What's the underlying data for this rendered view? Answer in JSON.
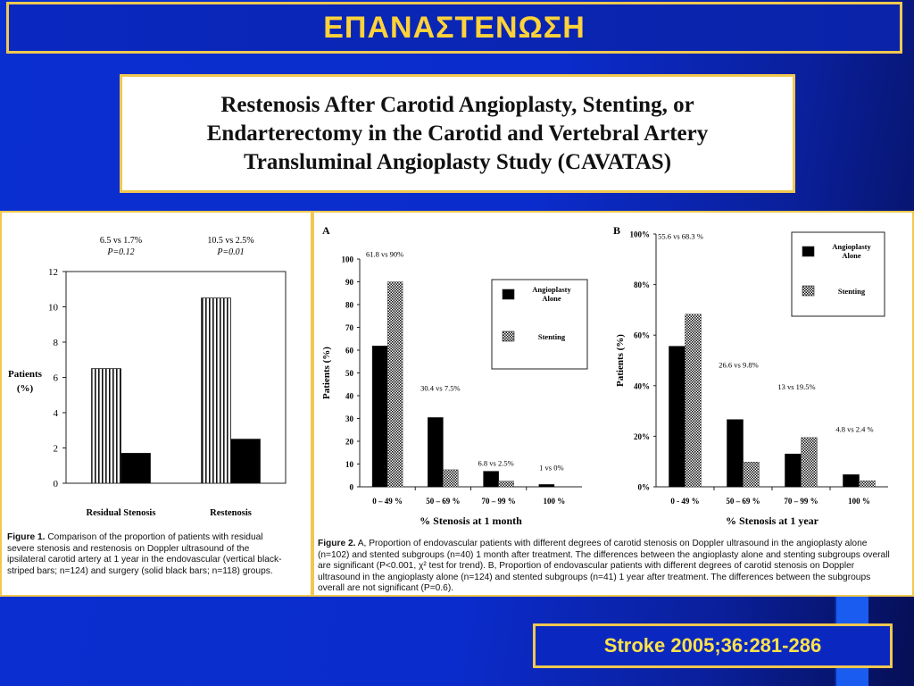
{
  "slide": {
    "title": "ΕΠΑΝΑΣΤΕΝΩΣΗ",
    "paper_title": [
      "Restenosis After Carotid Angioplasty, Stenting, or",
      "Endarterectomy in the Carotid and Vertebral Artery",
      "Transluminal Angioplasty Study (CAVATAS)"
    ],
    "citation": "Stroke 2005;36:281-286",
    "colors": {
      "background": "#0b2ccc",
      "border": "#f0c850",
      "title_text": "#ffd23a",
      "citation_text": "#ffe24a"
    }
  },
  "fig1_caption": {
    "label": "Figure 1.",
    "text": "Comparison of the proportion of patients with residual severe stenosis and restenosis on Doppler ultrasound of the ipsilateral carotid artery at 1 year in the endovascular (vertical black-striped bars; n=124) and surgery (solid black bars; n=118) groups."
  },
  "fig2_caption": {
    "label": "Figure 2.",
    "text": "A, Proportion of endovascular patients with different degrees of carotid stenosis on Doppler ultrasound in the angioplasty alone (n=102) and stented subgroups (n=40) 1 month after treatment. The differences between the angioplasty alone and stenting subgroups overall are significant (P<0.001, χ² test for trend). B, Proportion of endovascular patients with different degrees of carotid stenosis on Doppler ultrasound in the angioplasty alone (n=124) and stented subgroups (n=41) 1 year after treatment. The differences between the subgroups overall are not significant (P=0.6)."
  },
  "chart_data": [
    {
      "type": "bar",
      "title": "",
      "ylabel": "Patients (%)",
      "xlabel": "",
      "categories": [
        "Residual Stenosis",
        "Restenosis"
      ],
      "ylim": [
        0,
        12
      ],
      "yticks": [
        "0",
        "2",
        "4",
        "6",
        "8",
        "10",
        "12"
      ],
      "series": [
        {
          "name": "",
          "pattern": "vertical-stripes",
          "values": [
            6.5,
            10.5
          ]
        },
        {
          "name": "",
          "pattern": "solid-black",
          "values": [
            1.7,
            2.5
          ]
        }
      ],
      "annotations": [
        {
          "line1": "6.5 vs 1.7%",
          "line2": "P=0.12"
        },
        {
          "line1": "10.5 vs 2.5%",
          "line2": "P=0.01"
        }
      ],
      "grid": false
    },
    {
      "type": "bar",
      "panel_label": "A",
      "ylabel": "Patients (%)",
      "xlabel": "% Stenosis at 1 month",
      "categories": [
        "0 – 49 %",
        "50 – 69 %",
        "70 – 99 %",
        "100 %"
      ],
      "ylim": [
        0,
        100
      ],
      "yticks": [
        "0",
        "10",
        "20",
        "30",
        "40",
        "50",
        "60",
        "70",
        "80",
        "90",
        "100"
      ],
      "series": [
        {
          "name": "Angioplasty Alone",
          "pattern": "solid-black",
          "values": [
            61.8,
            30.4,
            6.8,
            1
          ]
        },
        {
          "name": "Stenting",
          "pattern": "checker",
          "values": [
            90,
            7.5,
            2.5,
            0
          ]
        }
      ],
      "annotations": [
        "61.8 vs 90%",
        "30.4 vs 7.5%",
        "6.8 vs 2.5%",
        "1 vs 0%"
      ],
      "legend": "top-right",
      "grid": false
    },
    {
      "type": "bar",
      "panel_label": "B",
      "ylabel": "Patients (%)",
      "xlabel": "% Stenosis at 1 year",
      "categories": [
        "0 - 49 %",
        "50 – 69 %",
        "70 – 99 %",
        "100 %"
      ],
      "ylim": [
        0,
        100
      ],
      "yticks": [
        "0%",
        "20%",
        "40%",
        "60%",
        "80%",
        "100%"
      ],
      "series": [
        {
          "name": "Angioplasty Alone",
          "pattern": "solid-black",
          "values": [
            55.6,
            26.6,
            13,
            4.8
          ]
        },
        {
          "name": "Stenting",
          "pattern": "checker",
          "values": [
            68.3,
            9.8,
            19.5,
            2.4
          ]
        }
      ],
      "annotations": [
        "55.6 vs 68.3 %",
        "26.6 vs 9.8%",
        "13 vs 19.5%",
        "4.8 vs 2.4 %"
      ],
      "legend": "top-right",
      "grid": false
    }
  ]
}
